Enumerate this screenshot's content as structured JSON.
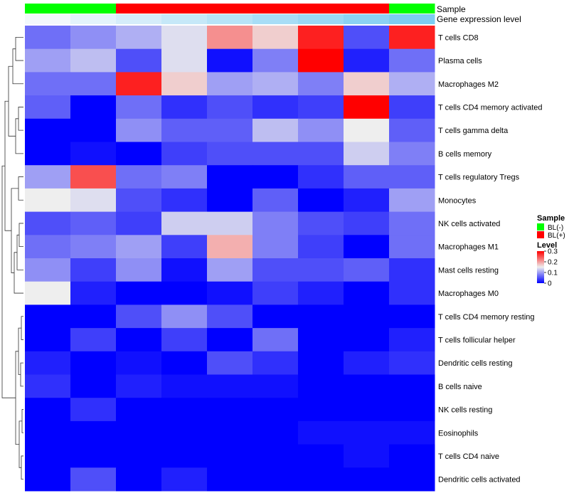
{
  "chart_data": {
    "type": "heatmap",
    "annotation_tracks": [
      {
        "name": "Sample",
        "values": [
          "BL(-)",
          "BL(-)",
          "BL(+)",
          "BL(+)",
          "BL(+)",
          "BL(+)",
          "BL(+)",
          "BL(+)",
          "BL(-)"
        ]
      },
      {
        "name": "Gene expression level",
        "values": [
          0.0,
          0.1,
          0.2,
          0.3,
          0.4,
          0.5,
          0.6,
          0.7,
          0.8
        ]
      }
    ],
    "rows": [
      "T cells CD8",
      "Plasma cells",
      "Macrophages M2",
      "T cells CD4 memory activated",
      "T cells gamma delta",
      "B cells memory",
      "T cells regulatory  Tregs",
      "Monocytes",
      "NK cells activated",
      "Macrophages M1",
      "Mast cells resting",
      "Macrophages M0",
      "T cells CD4 memory resting",
      "T cells follicular helper",
      "Dendritic cells resting",
      "B cells naive",
      "NK cells resting",
      "Eosinophils",
      "T cells CD4 naive",
      "Dendritic cells activated"
    ],
    "values": [
      [
        0.07,
        0.09,
        0.11,
        0.14,
        0.21,
        0.17,
        0.28,
        0.05,
        0.28
      ],
      [
        0.1,
        0.12,
        0.05,
        0.14,
        0.01,
        0.08,
        0.3,
        0.02,
        0.07
      ],
      [
        0.07,
        0.07,
        0.28,
        0.17,
        0.1,
        0.11,
        0.08,
        0.17,
        0.11
      ],
      [
        0.06,
        0.0,
        0.07,
        0.03,
        0.05,
        0.03,
        0.04,
        0.3,
        0.04
      ],
      [
        0.0,
        0.0,
        0.09,
        0.06,
        0.06,
        0.12,
        0.09,
        0.15,
        0.06
      ],
      [
        0.0,
        0.01,
        0.0,
        0.04,
        0.05,
        0.05,
        0.05,
        0.13,
        0.08
      ],
      [
        0.1,
        0.25,
        0.07,
        0.08,
        0.0,
        0.0,
        0.03,
        0.06,
        0.06
      ],
      [
        0.15,
        0.14,
        0.05,
        0.03,
        0.0,
        0.06,
        0.0,
        0.02,
        0.1
      ],
      [
        0.05,
        0.06,
        0.04,
        0.13,
        0.13,
        0.08,
        0.05,
        0.04,
        0.07
      ],
      [
        0.07,
        0.08,
        0.1,
        0.04,
        0.19,
        0.08,
        0.04,
        0.0,
        0.07
      ],
      [
        0.09,
        0.04,
        0.09,
        0.01,
        0.1,
        0.05,
        0.05,
        0.06,
        0.03
      ],
      [
        0.15,
        0.02,
        0.0,
        0.0,
        0.01,
        0.04,
        0.02,
        0.0,
        0.03
      ],
      [
        0.0,
        0.0,
        0.05,
        0.09,
        0.05,
        0.0,
        0.0,
        0.0,
        0.0
      ],
      [
        0.0,
        0.04,
        0.0,
        0.04,
        0.0,
        0.07,
        0.0,
        0.0,
        0.02
      ],
      [
        0.02,
        0.0,
        0.01,
        0.0,
        0.05,
        0.03,
        0.0,
        0.02,
        0.03
      ],
      [
        0.03,
        0.0,
        0.02,
        0.01,
        0.01,
        0.01,
        0.0,
        0.0,
        0.0
      ],
      [
        0.0,
        0.03,
        0.0,
        0.0,
        0.0,
        0.0,
        0.0,
        0.0,
        0.0
      ],
      [
        0.0,
        0.0,
        0.0,
        0.0,
        0.0,
        0.0,
        0.01,
        0.01,
        0.01
      ],
      [
        0.0,
        0.0,
        0.0,
        0.0,
        0.0,
        0.0,
        0.0,
        0.01,
        0.0
      ],
      [
        0.0,
        0.05,
        0.0,
        0.02,
        0.0,
        0.0,
        0.0,
        0.0,
        0.0
      ]
    ],
    "legend": {
      "sample": {
        "title": "Sample",
        "entries": [
          {
            "label": "BL(-)",
            "color": "#00ff00"
          },
          {
            "label": "BL(+)",
            "color": "#ff0000"
          }
        ]
      },
      "level": {
        "title": "Level",
        "ticks": [
          0.3,
          0.2,
          0.1,
          0
        ],
        "tick_labels": [
          "0.3",
          "0.2",
          "0.1",
          "0"
        ],
        "range": [
          0,
          0.3
        ]
      },
      "placement": "right"
    },
    "colors": {
      "low": "#0000ff",
      "mid": "#eeeeee",
      "high": "#ff0000",
      "mid_value": 0.15
    },
    "expression_colors": {
      "low": "#f2f8fc",
      "high": "#7ccdf2"
    }
  }
}
